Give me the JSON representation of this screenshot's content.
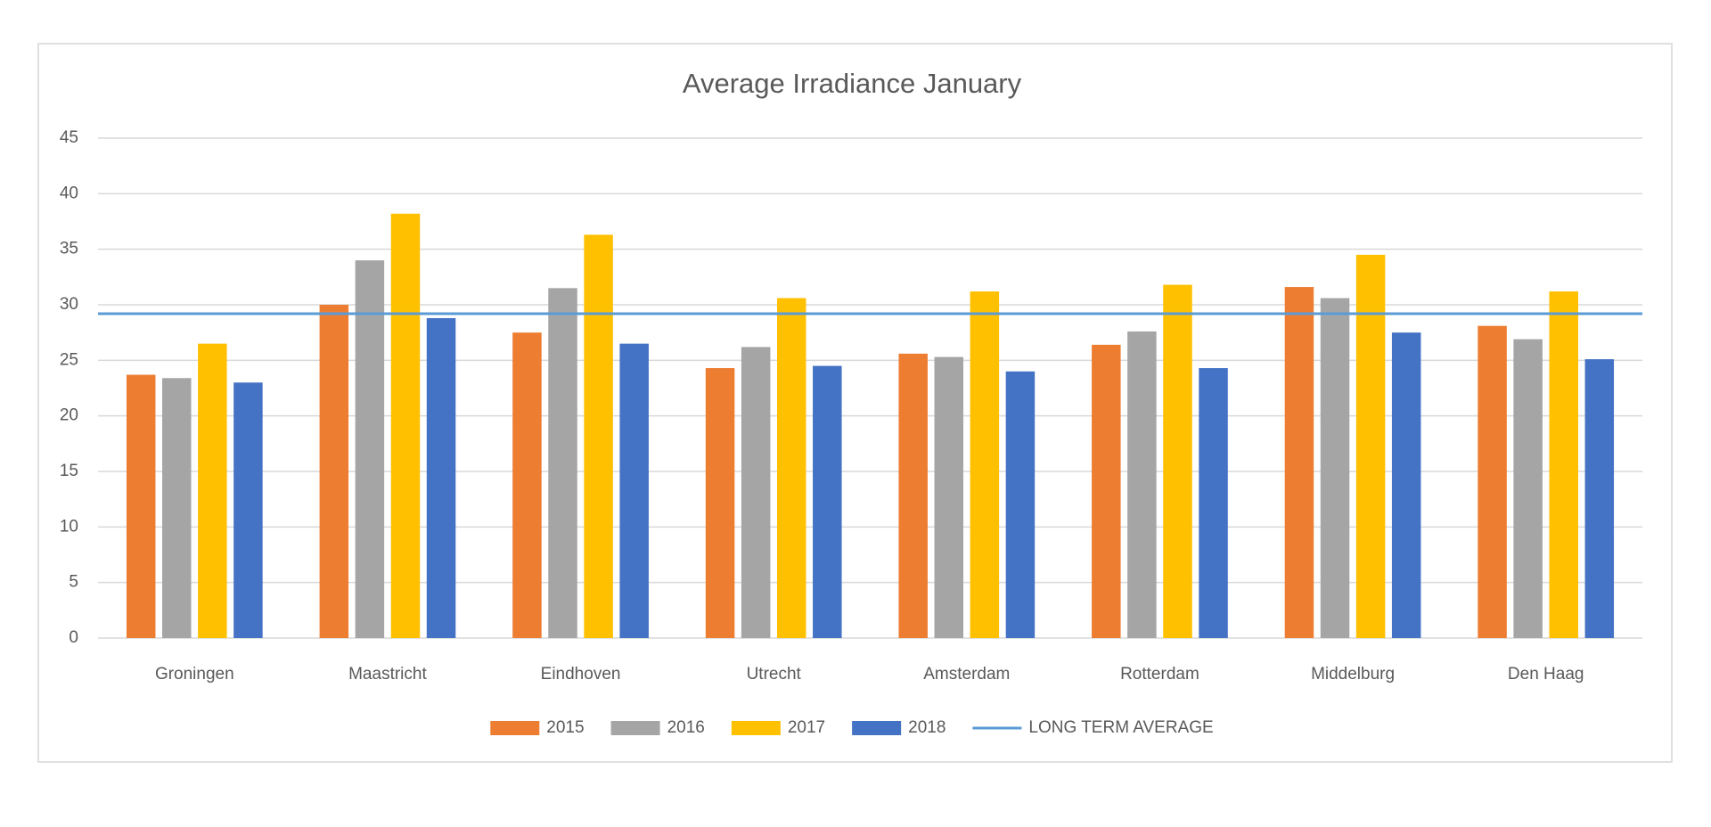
{
  "chart_data": {
    "type": "bar",
    "title": "Average Irradiance January",
    "categories": [
      "Groningen",
      "Maastricht",
      "Eindhoven",
      "Utrecht",
      "Amsterdam",
      "Rotterdam",
      "Middelburg",
      "Den Haag"
    ],
    "series": [
      {
        "name": "2015",
        "color": "#ed7d31",
        "values": [
          23.7,
          30.0,
          27.5,
          24.3,
          25.6,
          26.4,
          31.6,
          28.1
        ]
      },
      {
        "name": "2016",
        "color": "#a5a5a5",
        "values": [
          23.4,
          34.0,
          31.5,
          26.2,
          25.3,
          27.6,
          30.6,
          26.9
        ]
      },
      {
        "name": "2017",
        "color": "#ffc000",
        "values": [
          26.5,
          38.2,
          36.3,
          30.6,
          31.2,
          31.8,
          34.5,
          31.2
        ]
      },
      {
        "name": "2018",
        "color": "#4472c4",
        "values": [
          23.0,
          28.8,
          26.5,
          24.5,
          24.0,
          24.3,
          27.5,
          25.1
        ]
      }
    ],
    "reference_line": {
      "name": "LONG TERM AVERAGE",
      "value": 29.2,
      "color": "#5b9bd5"
    },
    "ylim": [
      0,
      45
    ],
    "yticks": [
      0,
      5,
      10,
      15,
      20,
      25,
      30,
      35,
      40,
      45
    ],
    "grid": true,
    "legend": "bottom"
  }
}
